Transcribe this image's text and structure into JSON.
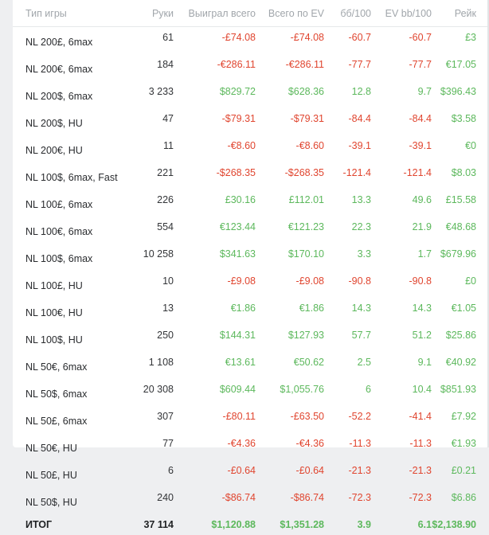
{
  "headers": {
    "game": "Тип игры",
    "hands": "Руки",
    "won": "Выиграл всего",
    "ev": "Всего по EV",
    "bb100": "бб/100",
    "evbb100": "EV bb/100",
    "rake": "Рейк"
  },
  "rows": [
    {
      "game": "NL 200£, 6max",
      "hands": "61",
      "won": "-£74.08",
      "ev": "-£74.08",
      "bb100": "-60.7",
      "evbb100": "-60.7",
      "rake": "£3"
    },
    {
      "game": "NL 200€, 6max",
      "hands": "184",
      "won": "-€286.11",
      "ev": "-€286.11",
      "bb100": "-77.7",
      "evbb100": "-77.7",
      "rake": "€17.05"
    },
    {
      "game": "NL 200$, 6max",
      "hands": "3 233",
      "won": "$829.72",
      "ev": "$628.36",
      "bb100": "12.8",
      "evbb100": "9.7",
      "rake": "$396.43"
    },
    {
      "game": "NL 200$, HU",
      "hands": "47",
      "won": "-$79.31",
      "ev": "-$79.31",
      "bb100": "-84.4",
      "evbb100": "-84.4",
      "rake": "$3.58"
    },
    {
      "game": "NL 200€, HU",
      "hands": "11",
      "won": "-€8.60",
      "ev": "-€8.60",
      "bb100": "-39.1",
      "evbb100": "-39.1",
      "rake": "€0"
    },
    {
      "game": "NL 100$, 6max, Fast",
      "hands": "221",
      "won": "-$268.35",
      "ev": "-$268.35",
      "bb100": "-121.4",
      "evbb100": "-121.4",
      "rake": "$8.03"
    },
    {
      "game": "NL 100£, 6max",
      "hands": "226",
      "won": "£30.16",
      "ev": "£112.01",
      "bb100": "13.3",
      "evbb100": "49.6",
      "rake": "£15.58"
    },
    {
      "game": "NL 100€, 6max",
      "hands": "554",
      "won": "€123.44",
      "ev": "€121.23",
      "bb100": "22.3",
      "evbb100": "21.9",
      "rake": "€48.68"
    },
    {
      "game": "NL 100$, 6max",
      "hands": "10 258",
      "won": "$341.63",
      "ev": "$170.10",
      "bb100": "3.3",
      "evbb100": "1.7",
      "rake": "$679.96"
    },
    {
      "game": "NL 100£, HU",
      "hands": "10",
      "won": "-£9.08",
      "ev": "-£9.08",
      "bb100": "-90.8",
      "evbb100": "-90.8",
      "rake": "£0"
    },
    {
      "game": "NL 100€, HU",
      "hands": "13",
      "won": "€1.86",
      "ev": "€1.86",
      "bb100": "14.3",
      "evbb100": "14.3",
      "rake": "€1.05"
    },
    {
      "game": "NL 100$, HU",
      "hands": "250",
      "won": "$144.31",
      "ev": "$127.93",
      "bb100": "57.7",
      "evbb100": "51.2",
      "rake": "$25.86"
    },
    {
      "game": "NL 50€, 6max",
      "hands": "1 108",
      "won": "€13.61",
      "ev": "€50.62",
      "bb100": "2.5",
      "evbb100": "9.1",
      "rake": "€40.92"
    },
    {
      "game": "NL 50$, 6max",
      "hands": "20 308",
      "won": "$609.44",
      "ev": "$1,055.76",
      "bb100": "6",
      "evbb100": "10.4",
      "rake": "$851.93"
    },
    {
      "game": "NL 50£, 6max",
      "hands": "307",
      "won": "-£80.11",
      "ev": "-£63.50",
      "bb100": "-52.2",
      "evbb100": "-41.4",
      "rake": "£7.92"
    },
    {
      "game": "NL 50€, HU",
      "hands": "77",
      "won": "-€4.36",
      "ev": "-€4.36",
      "bb100": "-11.3",
      "evbb100": "-11.3",
      "rake": "€1.93"
    },
    {
      "game": "NL 50£, HU",
      "hands": "6",
      "won": "-£0.64",
      "ev": "-£0.64",
      "bb100": "-21.3",
      "evbb100": "-21.3",
      "rake": "£0.21"
    },
    {
      "game": "NL 50$, HU",
      "hands": "240",
      "won": "-$86.74",
      "ev": "-$86.74",
      "bb100": "-72.3",
      "evbb100": "-72.3",
      "rake": "$6.86"
    }
  ],
  "total": {
    "game": "ИТОГ",
    "hands": "37 114",
    "won": "$1,120.88",
    "ev": "$1,351.28",
    "bb100": "3.9",
    "evbb100": "6.1",
    "rake": "$2,138.90"
  },
  "colors": {
    "positive": "#5cb85c",
    "negative": "#e0452f",
    "header_text": "#a1a6ab",
    "background": "#eeeff1"
  }
}
